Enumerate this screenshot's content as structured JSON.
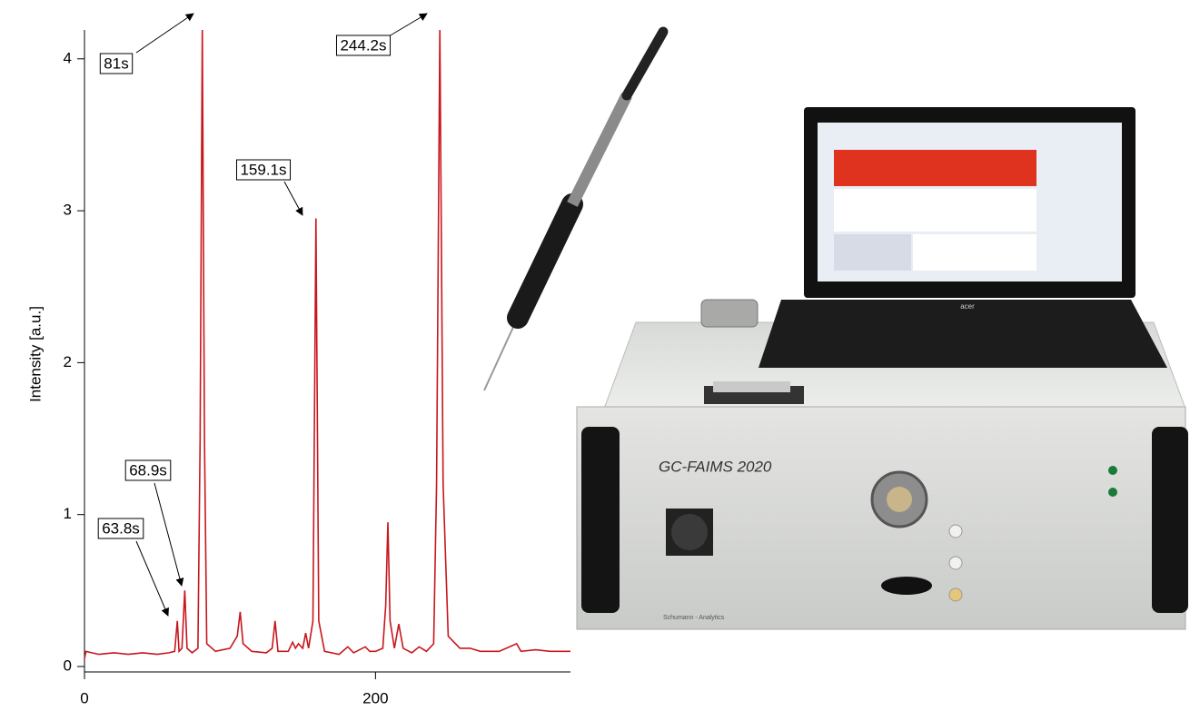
{
  "chart_data": {
    "type": "line",
    "y_label": "Intensity [a.u.]",
    "x": [
      0,
      1,
      5,
      10,
      20,
      30,
      40,
      50,
      58,
      62,
      63.8,
      65,
      67,
      68.9,
      70.5,
      74,
      78,
      79.5,
      81,
      82.5,
      84,
      90,
      100,
      105,
      107,
      109,
      115,
      125,
      129,
      131,
      133,
      140,
      143,
      145,
      147,
      150,
      152,
      154,
      157,
      159.1,
      161,
      165,
      175,
      181,
      185,
      193,
      196,
      200,
      205,
      207,
      208.5,
      210,
      213,
      216,
      219,
      225,
      230,
      235,
      240,
      242,
      244.2,
      246.5,
      250,
      258,
      265,
      272,
      285,
      297,
      300,
      310,
      320,
      334
    ],
    "values": [
      0.05,
      0.1,
      0.09,
      0.08,
      0.09,
      0.08,
      0.09,
      0.08,
      0.09,
      0.1,
      0.3,
      0.1,
      0.12,
      0.5,
      0.12,
      0.09,
      0.12,
      1.5,
      4.2,
      1.5,
      0.15,
      0.1,
      0.12,
      0.2,
      0.36,
      0.15,
      0.1,
      0.09,
      0.12,
      0.3,
      0.1,
      0.1,
      0.16,
      0.12,
      0.15,
      0.12,
      0.22,
      0.12,
      0.3,
      2.95,
      0.3,
      0.1,
      0.08,
      0.13,
      0.09,
      0.13,
      0.1,
      0.1,
      0.12,
      0.4,
      0.95,
      0.3,
      0.12,
      0.28,
      0.12,
      0.09,
      0.13,
      0.1,
      0.15,
      1.2,
      4.2,
      1.2,
      0.2,
      0.12,
      0.12,
      0.1,
      0.1,
      0.15,
      0.1,
      0.11,
      0.1,
      0.1
    ],
    "color": "#c8161d",
    "xlim": [
      0,
      334
    ],
    "ylim": [
      0,
      4.19
    ],
    "xticks": [
      0,
      200
    ],
    "yticks": [
      0,
      1,
      2,
      3,
      4
    ],
    "annotations": [
      "81s",
      "244.2s",
      "159.1s",
      "68.9s",
      "63.8s"
    ]
  },
  "photo": {
    "device_label": "GC-FAIMS 2020",
    "brand": "acer",
    "maker": "Schumann - Analytics"
  }
}
